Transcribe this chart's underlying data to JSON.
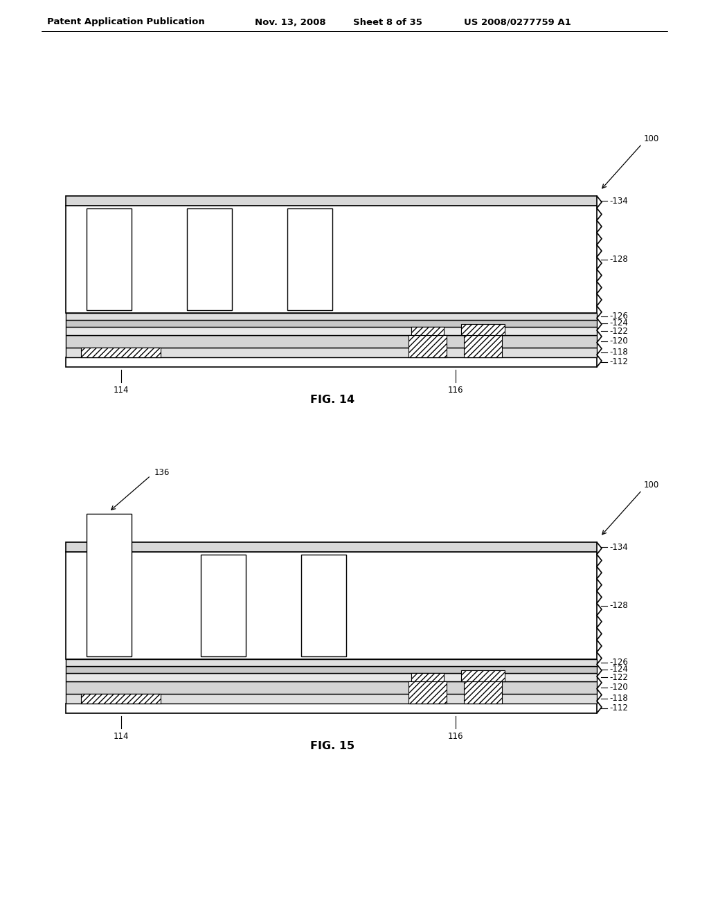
{
  "bg_color": "#ffffff",
  "header_text": "Patent Application Publication",
  "header_date": "Nov. 13, 2008",
  "header_sheet": "Sheet 8 of 35",
  "header_patent": "US 2008/0277759 A1",
  "fig14_label": "FIG. 14",
  "fig15_label": "FIG. 15"
}
